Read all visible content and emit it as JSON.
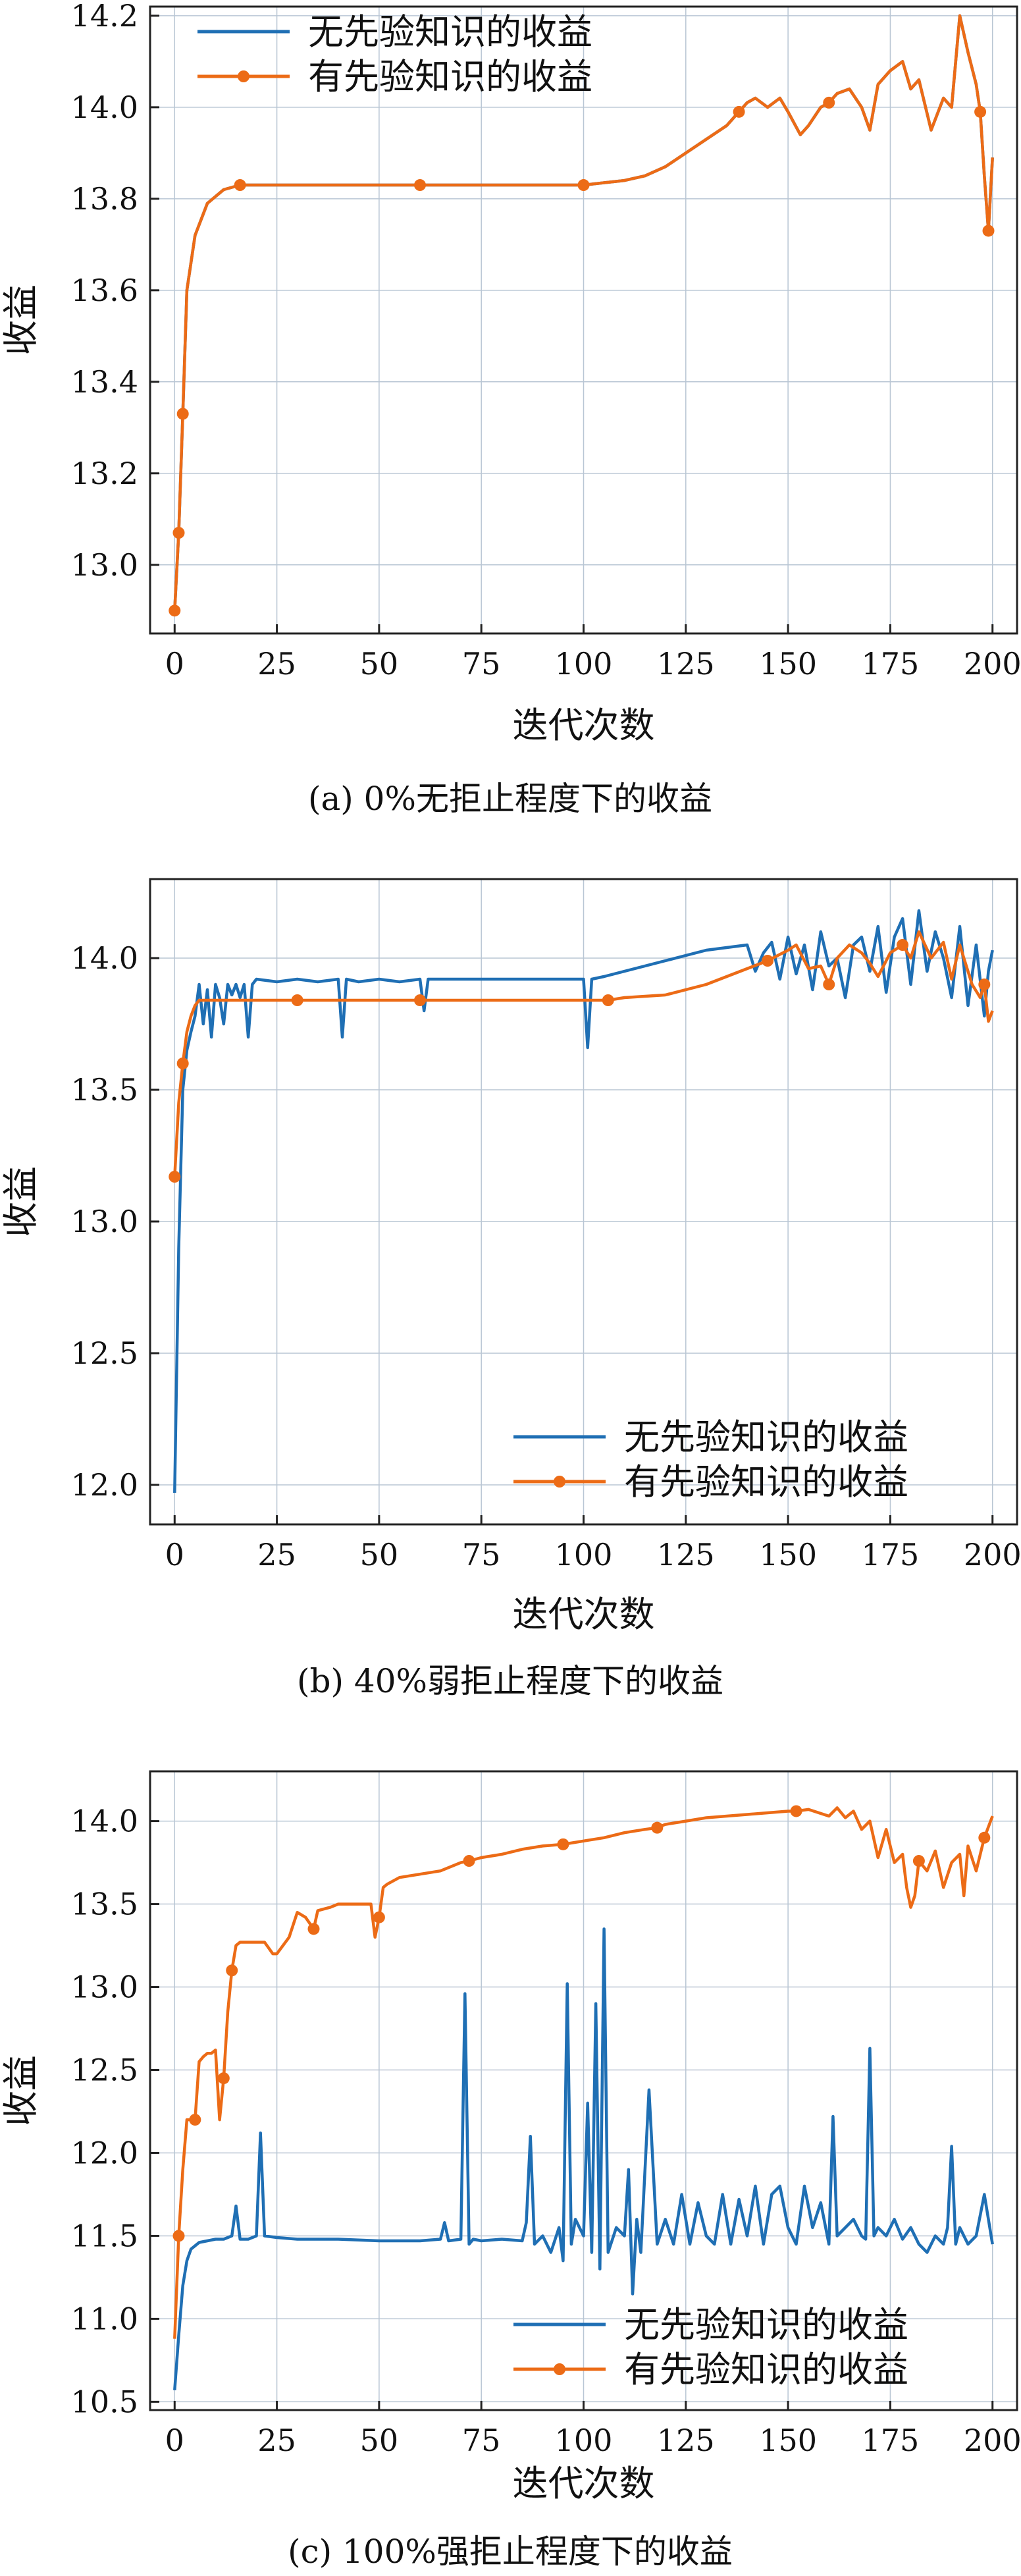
{
  "colors": {
    "blue": "#1f6fb4",
    "orange": "#ec6b16",
    "grid": "#b9c6d4",
    "axis": "#222222"
  },
  "chart_data": [
    {
      "type": "line",
      "caption": "(a) 0%无拒止程度下的收益",
      "xlabel": "迭代次数",
      "ylabel": "收益",
      "xlim": [
        -6,
        206
      ],
      "ylim": [
        12.85,
        14.22
      ],
      "xticks": [
        0,
        25,
        50,
        75,
        100,
        125,
        150,
        175,
        200
      ],
      "yticks": [
        13.0,
        13.2,
        13.4,
        13.6,
        13.8,
        14.0,
        14.2
      ],
      "ytick_labels": [
        "13.0",
        "13.2",
        "13.4",
        "13.6",
        "13.8",
        "14.0",
        "14.2"
      ],
      "legend_position": "top-left",
      "grid": true,
      "series": [
        {
          "name": "无先验知识的收益",
          "color": "#1f6fb4",
          "markers": false,
          "x": [
            0,
            1,
            2,
            3,
            5,
            8,
            12,
            16,
            20,
            40,
            60,
            80,
            100,
            105,
            110,
            115,
            120,
            125,
            130,
            135,
            138,
            140,
            142,
            145,
            148,
            150,
            153,
            155,
            158,
            160,
            162,
            165,
            168,
            170,
            172,
            175,
            178,
            180,
            182,
            185,
            188,
            190,
            192,
            194,
            196,
            197,
            198,
            199,
            200
          ],
          "values": [
            12.9,
            13.07,
            13.33,
            13.6,
            13.72,
            13.79,
            13.82,
            13.83,
            13.83,
            13.83,
            13.83,
            13.83,
            13.83,
            13.835,
            13.84,
            13.85,
            13.87,
            13.9,
            13.93,
            13.96,
            13.99,
            14.01,
            14.02,
            14.0,
            14.02,
            13.99,
            13.94,
            13.96,
            14.0,
            14.01,
            14.03,
            14.04,
            14.0,
            13.95,
            14.05,
            14.08,
            14.1,
            14.04,
            14.06,
            13.95,
            14.02,
            14.0,
            14.2,
            14.12,
            14.05,
            13.99,
            13.85,
            13.73,
            13.89
          ]
        },
        {
          "name": "有先验知识的收益",
          "color": "#ec6b16",
          "markers": true,
          "marker_x": [
            0,
            1,
            2,
            17,
            59,
            101,
            138,
            160,
            197,
            199
          ],
          "x": [
            0,
            1,
            2,
            3,
            5,
            8,
            12,
            16,
            20,
            40,
            60,
            80,
            100,
            105,
            110,
            115,
            120,
            125,
            130,
            135,
            138,
            140,
            142,
            145,
            148,
            150,
            153,
            155,
            158,
            160,
            162,
            165,
            168,
            170,
            172,
            175,
            178,
            180,
            182,
            185,
            188,
            190,
            192,
            194,
            196,
            197,
            198,
            199,
            200
          ],
          "values": [
            12.9,
            13.07,
            13.33,
            13.6,
            13.72,
            13.79,
            13.82,
            13.83,
            13.83,
            13.83,
            13.83,
            13.83,
            13.83,
            13.835,
            13.84,
            13.85,
            13.87,
            13.9,
            13.93,
            13.96,
            13.99,
            14.01,
            14.02,
            14.0,
            14.02,
            13.99,
            13.94,
            13.96,
            14.0,
            14.01,
            14.03,
            14.04,
            14.0,
            13.95,
            14.05,
            14.08,
            14.1,
            14.04,
            14.06,
            13.95,
            14.02,
            14.0,
            14.2,
            14.12,
            14.05,
            13.99,
            13.85,
            13.73,
            13.89
          ]
        }
      ]
    },
    {
      "type": "line",
      "caption": "(b) 40%弱拒止程度下的收益",
      "xlabel": "迭代次数",
      "ylabel": "收益",
      "xlim": [
        -6,
        206
      ],
      "ylim": [
        11.85,
        14.3
      ],
      "xticks": [
        0,
        25,
        50,
        75,
        100,
        125,
        150,
        175,
        200
      ],
      "yticks": [
        12.0,
        12.5,
        13.0,
        13.5,
        14.0
      ],
      "ytick_labels": [
        "12.0",
        "12.5",
        "13.0",
        "13.5",
        "14.0"
      ],
      "legend_position": "bottom-right",
      "grid": true,
      "series": [
        {
          "name": "无先验知识的收益",
          "color": "#1f6fb4",
          "markers": false,
          "x": [
            0,
            1,
            2,
            3,
            4,
            5,
            6,
            7,
            8,
            9,
            10,
            11,
            12,
            13,
            14,
            15,
            16,
            17,
            18,
            19,
            20,
            25,
            30,
            35,
            40,
            41,
            42,
            45,
            50,
            55,
            60,
            61,
            62,
            65,
            70,
            75,
            80,
            85,
            90,
            95,
            100,
            101,
            102,
            105,
            110,
            115,
            120,
            125,
            130,
            135,
            140,
            142,
            144,
            146,
            148,
            150,
            152,
            154,
            156,
            158,
            160,
            162,
            164,
            166,
            168,
            170,
            172,
            174,
            176,
            178,
            180,
            182,
            184,
            186,
            188,
            190,
            192,
            194,
            196,
            198,
            199,
            200
          ],
          "values": [
            11.97,
            12.9,
            13.5,
            13.65,
            13.72,
            13.78,
            13.9,
            13.75,
            13.88,
            13.7,
            13.9,
            13.85,
            13.75,
            13.9,
            13.86,
            13.9,
            13.85,
            13.9,
            13.7,
            13.9,
            13.92,
            13.91,
            13.92,
            13.91,
            13.92,
            13.7,
            13.92,
            13.91,
            13.92,
            13.91,
            13.92,
            13.8,
            13.92,
            13.92,
            13.92,
            13.92,
            13.92,
            13.92,
            13.92,
            13.92,
            13.92,
            13.66,
            13.92,
            13.93,
            13.95,
            13.97,
            13.99,
            14.01,
            14.03,
            14.04,
            14.05,
            13.95,
            14.02,
            14.06,
            13.92,
            14.08,
            13.94,
            14.05,
            13.88,
            14.1,
            13.97,
            14.0,
            13.85,
            14.05,
            14.08,
            13.95,
            14.12,
            13.87,
            14.08,
            14.15,
            13.9,
            14.18,
            13.95,
            14.1,
            14.0,
            13.85,
            14.12,
            13.82,
            14.05,
            13.78,
            13.95,
            14.03
          ]
        },
        {
          "name": "有先验知识的收益",
          "color": "#ec6b16",
          "markers": true,
          "marker_x": [
            0,
            2,
            30,
            64,
            106,
            147,
            160,
            177,
            198
          ],
          "x": [
            0,
            1,
            2,
            3,
            4,
            5,
            6,
            8,
            10,
            15,
            20,
            30,
            40,
            60,
            80,
            100,
            105,
            106,
            110,
            120,
            130,
            140,
            145,
            150,
            152,
            155,
            158,
            160,
            162,
            165,
            168,
            170,
            172,
            175,
            178,
            180,
            182,
            185,
            188,
            190,
            192,
            195,
            197,
            198,
            199,
            200
          ],
          "values": [
            13.17,
            13.45,
            13.6,
            13.72,
            13.78,
            13.82,
            13.84,
            13.84,
            13.84,
            13.84,
            13.84,
            13.84,
            13.84,
            13.84,
            13.84,
            13.84,
            13.84,
            13.84,
            13.85,
            13.86,
            13.9,
            13.96,
            13.99,
            14.03,
            14.05,
            13.96,
            13.97,
            13.9,
            14.0,
            14.05,
            14.02,
            13.98,
            13.93,
            14.02,
            14.05,
            14.0,
            14.1,
            14.0,
            14.06,
            13.92,
            14.05,
            13.9,
            13.85,
            13.9,
            13.76,
            13.8
          ]
        }
      ]
    },
    {
      "type": "line",
      "caption": "(c) 100%强拒止程度下的收益",
      "xlabel": "迭代次数",
      "ylabel": "收益",
      "xlim": [
        -6,
        206
      ],
      "ylim": [
        10.45,
        14.3
      ],
      "xticks": [
        0,
        25,
        50,
        75,
        100,
        125,
        150,
        175,
        200
      ],
      "yticks": [
        10.5,
        11.0,
        11.5,
        12.0,
        12.5,
        13.0,
        13.5,
        14.0
      ],
      "ytick_labels": [
        "10.5",
        "11.0",
        "11.5",
        "12.0",
        "12.5",
        "13.0",
        "13.5",
        "14.0"
      ],
      "legend_position": "bottom-right",
      "grid": true,
      "series": [
        {
          "name": "无先验知识的收益",
          "color": "#1f6fb4",
          "markers": false,
          "x": [
            0,
            1,
            2,
            3,
            4,
            6,
            8,
            10,
            12,
            14,
            15,
            16,
            18,
            20,
            21,
            22,
            25,
            30,
            40,
            50,
            60,
            65,
            66,
            67,
            70,
            71,
            72,
            73,
            75,
            80,
            85,
            86,
            87,
            88,
            90,
            92,
            94,
            95,
            96,
            97,
            98,
            100,
            101,
            102,
            103,
            104,
            105,
            106,
            108,
            110,
            111,
            112,
            113,
            114,
            116,
            118,
            120,
            122,
            124,
            126,
            128,
            130,
            132,
            134,
            136,
            138,
            140,
            142,
            144,
            146,
            148,
            150,
            152,
            154,
            156,
            158,
            160,
            161,
            162,
            164,
            166,
            168,
            169,
            170,
            171,
            172,
            174,
            176,
            178,
            180,
            182,
            184,
            186,
            188,
            189,
            190,
            191,
            192,
            194,
            196,
            198,
            200
          ],
          "values": [
            10.57,
            10.9,
            11.2,
            11.35,
            11.42,
            11.46,
            11.47,
            11.48,
            11.48,
            11.5,
            11.68,
            11.48,
            11.48,
            11.5,
            12.12,
            11.5,
            11.49,
            11.48,
            11.48,
            11.47,
            11.47,
            11.48,
            11.58,
            11.47,
            11.48,
            12.96,
            11.45,
            11.48,
            11.47,
            11.48,
            11.47,
            11.58,
            12.1,
            11.45,
            11.5,
            11.4,
            11.55,
            11.35,
            13.02,
            11.45,
            11.6,
            11.5,
            12.3,
            11.4,
            12.9,
            11.3,
            13.35,
            11.4,
            11.55,
            11.5,
            11.9,
            11.15,
            11.6,
            11.4,
            12.38,
            11.45,
            11.6,
            11.45,
            11.75,
            11.45,
            11.7,
            11.5,
            11.45,
            11.75,
            11.45,
            11.72,
            11.5,
            11.8,
            11.45,
            11.75,
            11.8,
            11.55,
            11.45,
            11.8,
            11.55,
            11.7,
            11.45,
            12.22,
            11.5,
            11.55,
            11.6,
            11.5,
            11.48,
            12.63,
            11.5,
            11.55,
            11.5,
            11.6,
            11.48,
            11.55,
            11.45,
            11.4,
            11.5,
            11.45,
            11.55,
            12.04,
            11.45,
            11.55,
            11.45,
            11.5,
            11.75,
            11.45
          ]
        },
        {
          "name": "有先验知识的收益",
          "color": "#ec6b16",
          "markers": true,
          "marker_x": [
            1,
            5,
            12,
            14,
            34,
            50,
            72,
            95,
            118,
            152,
            182,
            198
          ],
          "x": [
            0,
            1,
            2,
            3,
            4,
            5,
            6,
            7,
            8,
            9,
            10,
            11,
            12,
            13,
            14,
            15,
            16,
            18,
            20,
            22,
            24,
            25,
            28,
            30,
            32,
            34,
            35,
            38,
            40,
            45,
            48,
            49,
            50,
            51,
            52,
            55,
            60,
            65,
            70,
            72,
            75,
            80,
            85,
            90,
            95,
            100,
            105,
            110,
            115,
            118,
            120,
            125,
            130,
            135,
            140,
            145,
            150,
            152,
            155,
            160,
            162,
            164,
            166,
            168,
            170,
            172,
            174,
            176,
            178,
            179,
            180,
            181,
            182,
            184,
            186,
            188,
            190,
            192,
            193,
            194,
            196,
            198,
            200
          ],
          "values": [
            10.88,
            11.5,
            11.9,
            12.2,
            12.2,
            12.2,
            12.55,
            12.58,
            12.6,
            12.6,
            12.62,
            12.2,
            12.45,
            12.85,
            13.1,
            13.25,
            13.27,
            13.27,
            13.27,
            13.27,
            13.2,
            13.2,
            13.3,
            13.45,
            13.42,
            13.35,
            13.46,
            13.48,
            13.5,
            13.5,
            13.5,
            13.3,
            13.42,
            13.6,
            13.62,
            13.66,
            13.68,
            13.7,
            13.75,
            13.76,
            13.78,
            13.8,
            13.83,
            13.85,
            13.86,
            13.88,
            13.9,
            13.93,
            13.95,
            13.96,
            13.98,
            14.0,
            14.02,
            14.03,
            14.04,
            14.05,
            14.06,
            14.06,
            14.07,
            14.03,
            14.08,
            14.02,
            14.06,
            13.95,
            14.0,
            13.78,
            13.95,
            13.75,
            13.8,
            13.6,
            13.48,
            13.55,
            13.76,
            13.7,
            13.82,
            13.6,
            13.75,
            13.8,
            13.55,
            13.85,
            13.7,
            13.9,
            14.03
          ]
        }
      ]
    }
  ]
}
